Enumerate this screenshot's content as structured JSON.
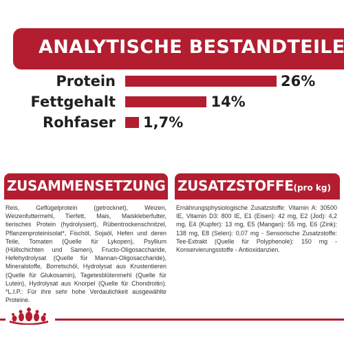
{
  "analysis": {
    "title": "ANALYTISCHE BESTANDTEILE",
    "rows": [
      {
        "label": "Protein",
        "value": "26%",
        "percent": 26
      },
      {
        "label": "Fettgehalt",
        "value": "14%",
        "percent": 14
      },
      {
        "label": "Rohfaser",
        "value": "1,7%",
        "percent": 1.7
      }
    ]
  },
  "composition": {
    "title": "ZUSAMMENSETZUNG",
    "text": "Reis, Geflügelprotein (getrocknet), Weizen, Weizenfuttermehl, Tierfett, Mais, Maiskleberfutter, tierisches Protein (hydrolysiert), Rübentrockenschnitzel, Pflanzenproteinisolat*, Fischöl, Sojaöl, Hefen und deren Teile, Tomaten (Quelle für Lykopen), Psyllium (Hüllschichten und Samen), Fructo-Oligosaccharide, Hefehydrolysat (Quelle für Mannan-Oligosaccharide), Mineralstoffe, Borretschöl, Hydrolysat aus Krustentieren (Quelle für Glukosamin), Tagetesblütenmehl (Quelle für Lutein), Hydrolysat aus Knorpel (Quelle für Chondroitin). *L.I.P.: Für ihre sehr hohe Verdaulichkeit ausgewählte Proteine."
  },
  "additives": {
    "title": "ZUSATZSTOFFE",
    "title_suffix": "(pro kg)",
    "text": "Ernährungsphysiologische Zusatzstoffe: Vitamin A: 30500 IE, Vitamin D3: 800 IE, E1 (Eisen): 42 mg, E2 (Jod): 4,2 mg, E4 (Kupfer): 13 mg, E5 (Mangan): 55 mg, E6 (Zink): 138 mg, E8 (Selen): 0,07 mg - Sensorische Zusatzstoffe: Tee-Extrakt (Quelle für Polyphenole): 150 mg - Konservierungsstoffe - Antioxidanzien."
  },
  "colors": {
    "accent": "#b31d30",
    "text": "#1f1f1f"
  },
  "logo": {
    "icon": "royal-canin-crown-icon"
  }
}
